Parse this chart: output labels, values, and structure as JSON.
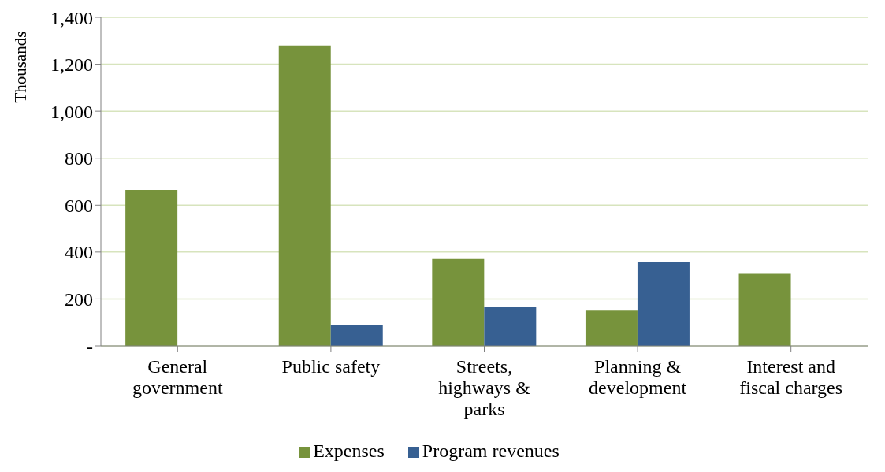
{
  "chart_data": {
    "type": "bar",
    "ylabel": "Thousands",
    "categories": [
      "General government",
      "Public safety",
      "Streets, highways & parks",
      "Planning & development",
      "Interest and fiscal charges"
    ],
    "series": [
      {
        "name": "Expenses",
        "color": "#77933c",
        "values": [
          665,
          1280,
          370,
          150,
          307
        ]
      },
      {
        "name": "Program revenues",
        "color": "#376092",
        "values": [
          0,
          87,
          165,
          356,
          0
        ]
      }
    ],
    "ylim": [
      0,
      1400
    ],
    "yticks": [
      {
        "value": 0,
        "label": "-"
      },
      200,
      400,
      600,
      800,
      {
        "value": 1000,
        "label": "1,000"
      },
      {
        "value": 1200,
        "label": "1,200"
      },
      {
        "value": 1400,
        "label": "1,400"
      }
    ],
    "grid": "y",
    "legend": "bottom"
  }
}
